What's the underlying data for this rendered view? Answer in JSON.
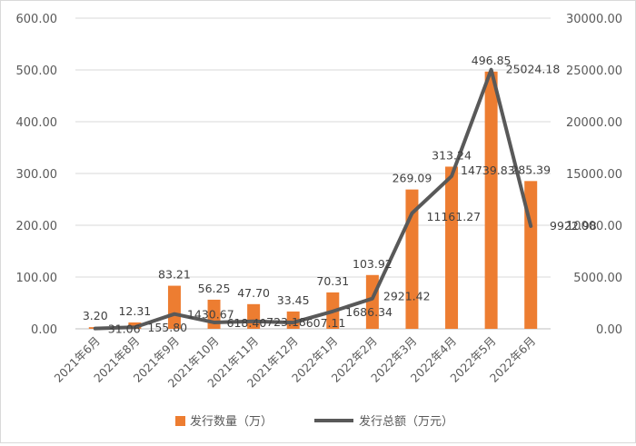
{
  "chart_data": {
    "type": "bar",
    "categories": [
      "2021年6月",
      "2021年8月",
      "2021年9月",
      "2021年10月",
      "2021年11月",
      "2021年12月",
      "2022年1月",
      "2022年2月",
      "2022年3月",
      "2022年4月",
      "2022年5月",
      "2022年6月"
    ],
    "series": [
      {
        "name": "发行数量（万）",
        "type": "bar",
        "axis": "left",
        "values": [
          3.2,
          12.31,
          83.21,
          56.25,
          47.7,
          33.45,
          70.31,
          103.92,
          269.09,
          313.24,
          496.85,
          285.39
        ],
        "labels": [
          "3.20",
          "12.31",
          "83.21",
          "56.25",
          "47.70",
          "33.45",
          "70.31",
          "103.92",
          "269.09",
          "313.24",
          "496.85",
          "285.39"
        ]
      },
      {
        "name": "发行总额（万元）",
        "type": "line",
        "axis": "right",
        "values": [
          31.06,
          155.8,
          1430.67,
          618.4,
          723.18,
          607.11,
          1686.34,
          2921.42,
          11161.27,
          14739.83,
          25024.18,
          9922.98
        ],
        "labels": [
          "31.06",
          "155.80",
          "1430.67",
          "618.40",
          "723.18",
          "607.11",
          "1686.34",
          "2921.42",
          "11161.27",
          "14739.83",
          "25024.18",
          "9922.98"
        ]
      }
    ],
    "yleft": {
      "ylim": [
        0,
        600
      ],
      "ticks": [
        "0.00",
        "100.00",
        "200.00",
        "300.00",
        "400.00",
        "500.00",
        "600.00"
      ]
    },
    "yright": {
      "ylim": [
        0,
        30000
      ],
      "ticks": [
        "0.00",
        "5000.00",
        "10000.00",
        "15000.00",
        "20000.00",
        "25000.00",
        "30000.00"
      ]
    },
    "grid": true,
    "legend_position": "bottom",
    "colors": {
      "bar": "#ED7D31",
      "line": "#595959",
      "grid": "#d9d9d9"
    }
  }
}
